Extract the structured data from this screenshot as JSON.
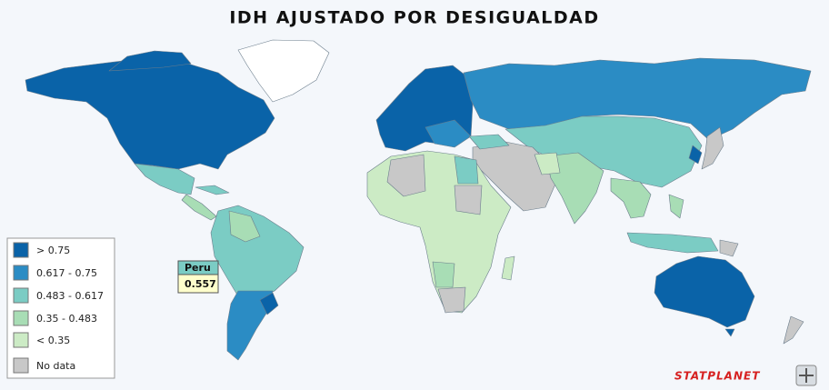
{
  "title": "IDH AJUSTADO POR DESIGUALDAD",
  "legend": [
    {
      "label": "> 0.75",
      "color": "#0a63a8"
    },
    {
      "label": "0.617 - 0.75",
      "color": "#2b8cc4"
    },
    {
      "label": "0.483 - 0.617",
      "color": "#7bccc4"
    },
    {
      "label": "0.35 - 0.483",
      "color": "#a8ddb5"
    },
    {
      "label": "< 0.35",
      "color": "#ccebc5"
    },
    {
      "label": "No data",
      "color": "#c8c8c8"
    }
  ],
  "tooltip": {
    "country": "Peru",
    "value": "0.557"
  },
  "brand": "STATPLANET"
}
